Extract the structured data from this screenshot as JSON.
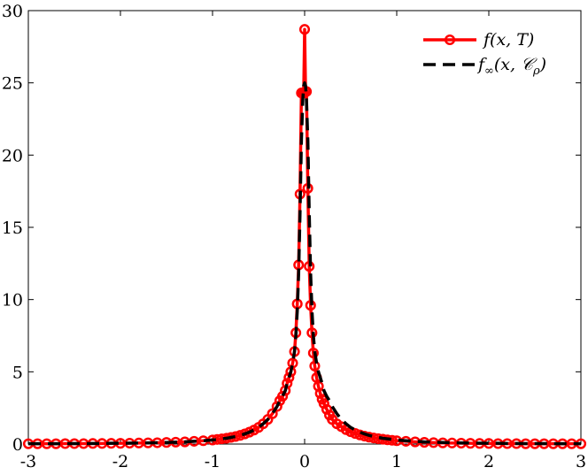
{
  "chart_data": {
    "type": "line",
    "title": "",
    "xlabel": "",
    "ylabel": "",
    "xlim": [
      -3,
      3
    ],
    "ylim": [
      0,
      30
    ],
    "xticks": [
      -3,
      -2,
      -1,
      0,
      1,
      2,
      3
    ],
    "yticks": [
      0,
      5,
      10,
      15,
      20,
      25,
      30
    ],
    "xtick_labels": [
      "-3",
      "-2",
      "-1",
      "0",
      "1",
      "2",
      "3"
    ],
    "ytick_labels": [
      "0",
      "5",
      "10",
      "15",
      "20",
      "25",
      "30"
    ],
    "grid": false,
    "legend_position": "top-right",
    "legend": {
      "entry1": {
        "main": "f(x, T)"
      },
      "entry2": {
        "main": "f",
        "sub": "∞",
        "rest": "(x, 𝒞",
        "sub2": "ρ",
        "close": ")"
      }
    },
    "series": [
      {
        "style": "solid line with circle markers",
        "color": "#ff0000",
        "marker": "circle",
        "x": [
          -3.0,
          -2.9,
          -2.8,
          -2.7,
          -2.6,
          -2.5,
          -2.4,
          -2.3,
          -2.2,
          -2.1,
          -2.0,
          -1.9,
          -1.8,
          -1.7,
          -1.6,
          -1.5,
          -1.4,
          -1.3,
          -1.2,
          -1.1,
          -1.0,
          -0.95,
          -0.9,
          -0.85,
          -0.8,
          -0.75,
          -0.7,
          -0.65,
          -0.6,
          -0.55,
          -0.5,
          -0.45,
          -0.4,
          -0.35,
          -0.3,
          -0.27,
          -0.24,
          -0.21,
          -0.19,
          -0.17,
          -0.15,
          -0.13,
          -0.11,
          -0.095,
          -0.08,
          -0.065,
          -0.05,
          -0.035,
          -0.02,
          -0.01,
          0.0,
          0.01,
          0.02,
          0.035,
          0.05,
          0.065,
          0.08,
          0.095,
          0.11,
          0.13,
          0.15,
          0.17,
          0.19,
          0.21,
          0.24,
          0.27,
          0.3,
          0.35,
          0.4,
          0.45,
          0.5,
          0.55,
          0.6,
          0.65,
          0.7,
          0.75,
          0.8,
          0.85,
          0.9,
          0.95,
          1.0,
          1.1,
          1.2,
          1.3,
          1.4,
          1.5,
          1.6,
          1.7,
          1.8,
          1.9,
          2.0,
          2.1,
          2.2,
          2.3,
          2.4,
          2.5,
          2.6,
          2.7,
          2.8,
          2.9,
          3.0
        ],
        "y": [
          0.02,
          0.02,
          0.02,
          0.02,
          0.03,
          0.03,
          0.03,
          0.04,
          0.04,
          0.05,
          0.05,
          0.06,
          0.07,
          0.08,
          0.09,
          0.11,
          0.13,
          0.15,
          0.19,
          0.23,
          0.28,
          0.32,
          0.36,
          0.4,
          0.46,
          0.52,
          0.6,
          0.7,
          0.82,
          0.97,
          1.15,
          1.4,
          1.7,
          2.1,
          2.6,
          3.0,
          3.3,
          3.7,
          4.2,
          4.6,
          5.0,
          5.6,
          6.4,
          7.7,
          9.7,
          12.4,
          17.3,
          24.3,
          24.3,
          24.3,
          28.7,
          24.4,
          24.4,
          17.7,
          12.3,
          9.6,
          7.7,
          6.3,
          5.4,
          4.6,
          4.0,
          3.5,
          3.1,
          2.8,
          2.4,
          2.0,
          1.7,
          1.4,
          1.2,
          1.0,
          0.85,
          0.73,
          0.63,
          0.55,
          0.48,
          0.42,
          0.37,
          0.33,
          0.29,
          0.26,
          0.23,
          0.19,
          0.15,
          0.12,
          0.1,
          0.08,
          0.07,
          0.06,
          0.05,
          0.04,
          0.04,
          0.03,
          0.03,
          0.03,
          0.02,
          0.02,
          0.02,
          0.02,
          0.02,
          0.02,
          0.02
        ]
      },
      {
        "style": "dashed line",
        "color": "#000000",
        "x": [
          -3.0,
          -2.9,
          -2.8,
          -2.7,
          -2.6,
          -2.5,
          -2.4,
          -2.3,
          -2.2,
          -2.1,
          -2.0,
          -1.9,
          -1.8,
          -1.7,
          -1.6,
          -1.5,
          -1.4,
          -1.3,
          -1.2,
          -1.1,
          -1.0,
          -0.95,
          -0.9,
          -0.85,
          -0.8,
          -0.75,
          -0.7,
          -0.65,
          -0.6,
          -0.55,
          -0.5,
          -0.45,
          -0.4,
          -0.35,
          -0.3,
          -0.27,
          -0.24,
          -0.21,
          -0.19,
          -0.17,
          -0.15,
          -0.13,
          -0.11,
          -0.095,
          -0.08,
          -0.065,
          -0.05,
          -0.035,
          -0.02,
          -0.01,
          0.0,
          0.01,
          0.02,
          0.035,
          0.05,
          0.065,
          0.08,
          0.095,
          0.11,
          0.13,
          0.15,
          0.17,
          0.19,
          0.21,
          0.24,
          0.27,
          0.3,
          0.35,
          0.4,
          0.45,
          0.5,
          0.55,
          0.6,
          0.65,
          0.7,
          0.75,
          0.8,
          0.85,
          0.9,
          0.95,
          1.0,
          1.1,
          1.2,
          1.3,
          1.4,
          1.5,
          1.6,
          1.7,
          1.8,
          1.9,
          2.0,
          2.1,
          2.2,
          2.3,
          2.4,
          2.5,
          2.6,
          2.7,
          2.8,
          2.9,
          3.0
        ],
        "y": [
          0.02,
          0.02,
          0.02,
          0.02,
          0.03,
          0.03,
          0.03,
          0.04,
          0.04,
          0.05,
          0.05,
          0.06,
          0.07,
          0.08,
          0.09,
          0.11,
          0.13,
          0.15,
          0.19,
          0.23,
          0.28,
          0.32,
          0.36,
          0.4,
          0.46,
          0.52,
          0.6,
          0.7,
          0.82,
          0.97,
          1.15,
          1.4,
          1.7,
          2.1,
          2.6,
          3.0,
          3.3,
          3.7,
          4.2,
          4.6,
          5.0,
          5.6,
          6.4,
          7.5,
          9.2,
          11.8,
          16.0,
          21.0,
          23.8,
          24.8,
          25.0,
          24.8,
          23.8,
          21.0,
          16.0,
          11.8,
          9.2,
          7.5,
          6.4,
          5.6,
          5.0,
          4.6,
          4.2,
          3.7,
          3.3,
          3.0,
          2.6,
          2.1,
          1.7,
          1.4,
          1.15,
          0.97,
          0.82,
          0.7,
          0.6,
          0.52,
          0.46,
          0.4,
          0.36,
          0.32,
          0.28,
          0.23,
          0.19,
          0.15,
          0.13,
          0.11,
          0.09,
          0.08,
          0.07,
          0.06,
          0.05,
          0.05,
          0.04,
          0.04,
          0.03,
          0.03,
          0.03,
          0.02,
          0.02,
          0.02,
          0.02
        ]
      }
    ]
  }
}
